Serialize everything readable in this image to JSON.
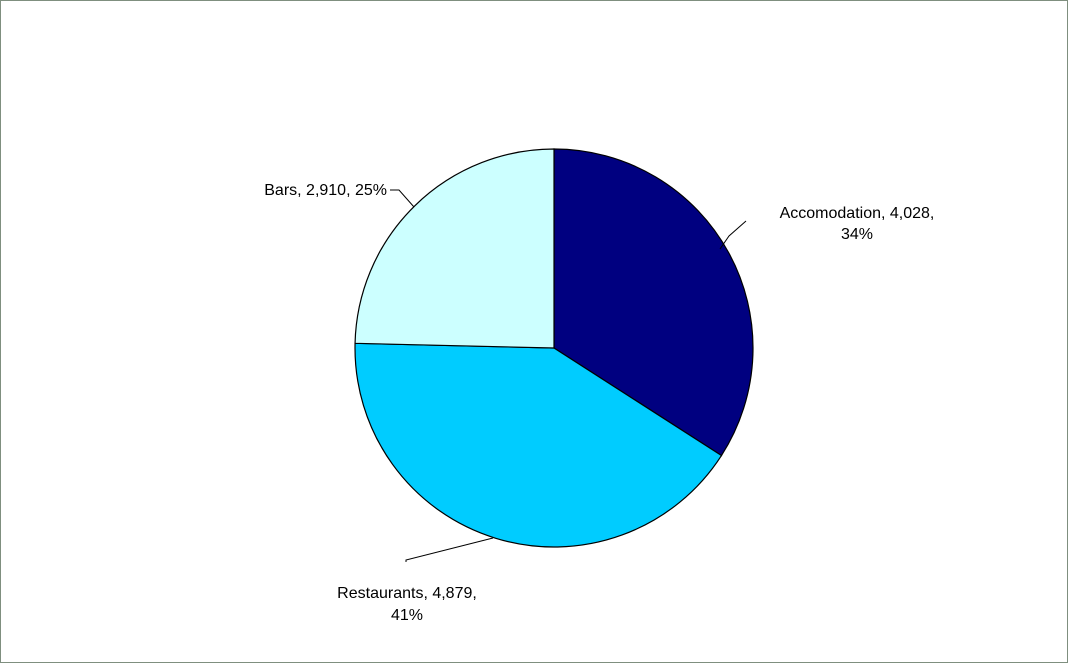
{
  "chart_data": {
    "type": "pie",
    "title": "",
    "start_angle_deg": 0,
    "direction": "clockwise",
    "legend": "none",
    "slices": [
      {
        "name": "Accomodation",
        "value": 4028,
        "percent": 34,
        "color": "#000080",
        "label_lines": [
          "Accomodation, 4,028,",
          "34%"
        ]
      },
      {
        "name": "Restaurants",
        "value": 4879,
        "percent": 41,
        "color": "#00ccff",
        "label_lines": [
          "Restaurants, 4,879,",
          "41%"
        ]
      },
      {
        "name": "Bars",
        "value": 2910,
        "percent": 25,
        "color": "#ccffff",
        "label_lines": [
          "Bars, 2,910, 25%"
        ]
      }
    ]
  }
}
